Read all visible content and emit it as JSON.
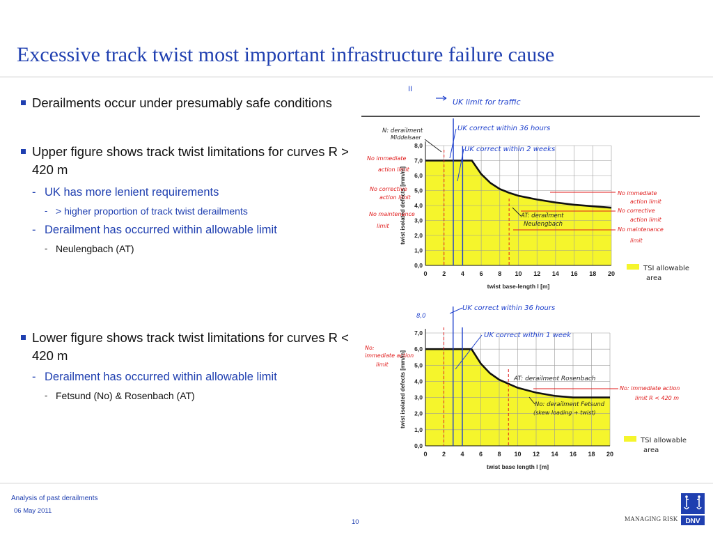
{
  "title": "Excessive track twist most important infrastructure failure cause",
  "bullets": [
    {
      "text": "Derailments occur under presumably safe conditions",
      "sub": []
    },
    {
      "text": "Upper figure shows track twist limitations for curves R > 420 m",
      "sub": [
        {
          "text": "UK has more lenient requirements",
          "sub": [
            {
              "text": "> higher proportion of track twist derailments"
            }
          ]
        },
        {
          "text": "Derailment has occurred within allowable limit",
          "sub": [
            {
              "text": "Neulengbach (AT)"
            }
          ]
        }
      ]
    },
    {
      "text": "Lower figure shows track twist limitations for curves R < 420 m",
      "sub": [
        {
          "text": "Derailment has occurred within allowable limit",
          "sub": [
            {
              "text": "Fetsund (No) & Rosenbach (AT)"
            }
          ]
        }
      ]
    }
  ],
  "chart_data": [
    {
      "type": "area",
      "xlabel": "twist base-length l [m]",
      "ylabel": "twist isolated defects [mm/m]",
      "xlim": [
        0,
        20
      ],
      "ylim": [
        0,
        8
      ],
      "xticks": [
        0,
        2,
        4,
        6,
        8,
        10,
        12,
        14,
        16,
        18,
        20
      ],
      "yticks": [
        "0,0",
        "1,0",
        "2,0",
        "3,0",
        "4,0",
        "5,0",
        "6,0",
        "7,0",
        "8,0"
      ],
      "series": [
        {
          "x": [
            0,
            5,
            6,
            7,
            8,
            9,
            10,
            12,
            14,
            16,
            18,
            20
          ],
          "y": [
            7.0,
            7.0,
            6.1,
            5.5,
            5.1,
            4.85,
            4.65,
            4.4,
            4.2,
            4.05,
            3.95,
            3.85
          ]
        }
      ],
      "colors": {
        "fill": "#f5f52c",
        "line": "#111111",
        "uk_line": "#1d3fcc",
        "annotation_red": "#e01a1a",
        "annotation_blue": "#1d3fcc"
      },
      "annotations": {
        "top": "UK limit for traffic",
        "uk1": "UK correct within 36 hours",
        "uk2": "UK correct within 2 weeks",
        "mid1": "N: derailment",
        "mid2": "Middelsaer",
        "neu": "AT: derailment",
        "neu2": "Neulengbach",
        "left1": "No immediate action limit",
        "left2": "No corrective action limit",
        "left3": "No maintenance limit",
        "right1": "No immediate action limit",
        "right2": "No corrective action limit",
        "right3": "No maintenance limit",
        "legend": "TSI allowable area"
      }
    },
    {
      "type": "area",
      "xlabel": "twist base length l [m]",
      "ylabel": "twist isolated defects [mm/m]",
      "xlim": [
        0,
        20
      ],
      "ylim": [
        0,
        7
      ],
      "xticks": [
        0,
        2,
        4,
        6,
        8,
        10,
        12,
        14,
        16,
        18,
        20
      ],
      "yticks": [
        "0,0",
        "1,0",
        "2,0",
        "3,0",
        "4,0",
        "5,0",
        "6,0",
        "7,0"
      ],
      "series": [
        {
          "x": [
            0,
            5,
            6,
            7,
            8,
            9,
            10,
            12,
            14,
            16,
            18,
            20
          ],
          "y": [
            6.0,
            6.0,
            5.1,
            4.5,
            4.1,
            3.85,
            3.6,
            3.3,
            3.1,
            3.0,
            3.0,
            3.0
          ]
        }
      ],
      "colors": {
        "fill": "#f5f52c",
        "line": "#111111",
        "uk_line": "#1d3fcc",
        "annotation_red": "#e01a1a",
        "annotation_blue": "#1d3fcc"
      },
      "annotations": {
        "top": "UK correct within 36 hours",
        "uk1": "UK correct within 1 week",
        "ros": "AT: derailment Rosenbach",
        "fet": "No: derailment Fetsund",
        "fet2": "(skew loading + twist)",
        "left1": "No: immediate action limit",
        "right1": "No: immediate action limit R < 420 m",
        "legend": "TSI allowable area"
      }
    }
  ],
  "footer": {
    "section": "Analysis of past derailments",
    "date": "06 May 2011",
    "page": "10",
    "tagline": "MANAGING RISK",
    "brand": "DNV"
  }
}
